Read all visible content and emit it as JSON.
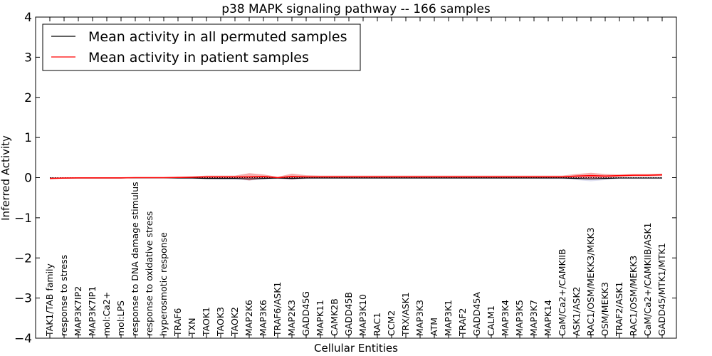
{
  "chart_data": {
    "type": "line",
    "title": "p38 MAPK signaling pathway -- 166 samples",
    "xlabel": "Cellular Entities",
    "ylabel": "Inferred Activity",
    "ylim": [
      -4,
      4
    ],
    "yticks": [
      4,
      3,
      2,
      1,
      0,
      -1,
      -2,
      -3,
      -4
    ],
    "ytick_labels": [
      "4",
      "3",
      "2",
      "1",
      "0",
      "−1",
      "−2",
      "−3",
      "−4"
    ],
    "legend_position": "top-left",
    "categories": [
      "TAK1/TAB family",
      "response to stress",
      "MAP3K7IP2",
      "MAP3K7IP1",
      "mol:Ca2+",
      "mol:LPS",
      "response to DNA damage stimulus",
      "response to oxidative stress",
      "hyperosmotic response",
      "TRAF6",
      "TXN",
      "TAOK1",
      "TAOK3",
      "TAOK2",
      "MAP2K6",
      "MAP3K6",
      "TRAF6/ASK1",
      "MAP2K3",
      "GADD45G",
      "MAPK11",
      "CAMK2B",
      "GADD45B",
      "MAP3K10",
      "RAC1",
      "CCM2",
      "TRX/ASK1",
      "MAP3K3",
      "ATM",
      "MAP3K1",
      "TRAF2",
      "GADD45A",
      "CALM1",
      "MAP3K4",
      "MAP3K5",
      "MAP3K7",
      "MAPK14",
      "CaM/Ca2+/CAMKIIB",
      "ASK1/ASK2",
      "RAC1/OSM/MEKK3/MKK3",
      "OSM/MEKK3",
      "TRAF2/ASK1",
      "RAC1/OSM/MEKK3",
      "CaM/Ca2+/CAMKIIB/ASK1",
      "GADD45/MTK1/MTK1"
    ],
    "series": [
      {
        "name": "Mean activity in all permuted samples",
        "color": "#000000",
        "values": [
          -0.01,
          -0.01,
          -0.01,
          -0.01,
          -0.01,
          -0.01,
          -0.005,
          -0.005,
          -0.005,
          -0.01,
          -0.01,
          -0.02,
          -0.02,
          -0.02,
          -0.03,
          -0.02,
          -0.01,
          -0.02,
          -0.01,
          -0.01,
          -0.01,
          -0.01,
          -0.01,
          -0.01,
          -0.01,
          -0.01,
          -0.01,
          -0.01,
          -0.01,
          -0.01,
          -0.01,
          -0.01,
          -0.01,
          -0.01,
          -0.01,
          -0.01,
          -0.01,
          -0.02,
          -0.03,
          -0.02,
          -0.01,
          -0.01,
          -0.01,
          -0.01
        ],
        "band": [
          0.01,
          0.01,
          0.01,
          0.01,
          0.01,
          0.01,
          0.01,
          0.01,
          0.01,
          0.015,
          0.02,
          0.02,
          0.03,
          0.03,
          0.04,
          0.03,
          0.02,
          0.04,
          0.02,
          0.015,
          0.015,
          0.015,
          0.015,
          0.015,
          0.015,
          0.015,
          0.015,
          0.015,
          0.015,
          0.015,
          0.015,
          0.015,
          0.015,
          0.015,
          0.015,
          0.02,
          0.02,
          0.04,
          0.06,
          0.04,
          0.02,
          0.02,
          0.02,
          0.02
        ]
      },
      {
        "name": "Mean activity in patient samples",
        "color": "#ff0000",
        "values": [
          -0.02,
          -0.01,
          -0.005,
          -0.005,
          -0.005,
          -0.005,
          0.0,
          0.0,
          0.0,
          0.005,
          0.01,
          0.02,
          0.02,
          0.02,
          0.02,
          0.03,
          0.0,
          0.03,
          0.02,
          0.02,
          0.02,
          0.02,
          0.02,
          0.02,
          0.02,
          0.02,
          0.02,
          0.02,
          0.02,
          0.02,
          0.02,
          0.02,
          0.02,
          0.02,
          0.02,
          0.02,
          0.02,
          0.04,
          0.05,
          0.04,
          0.05,
          0.06,
          0.06,
          0.07
        ],
        "band": [
          0.02,
          0.015,
          0.01,
          0.01,
          0.01,
          0.01,
          0.01,
          0.01,
          0.01,
          0.015,
          0.02,
          0.03,
          0.03,
          0.03,
          0.09,
          0.05,
          0.02,
          0.07,
          0.04,
          0.03,
          0.03,
          0.03,
          0.03,
          0.03,
          0.03,
          0.03,
          0.03,
          0.03,
          0.03,
          0.03,
          0.03,
          0.03,
          0.03,
          0.03,
          0.03,
          0.03,
          0.03,
          0.05,
          0.07,
          0.05,
          0.03,
          0.03,
          0.03,
          0.03
        ]
      }
    ],
    "reference_line": 0,
    "grid": false
  }
}
